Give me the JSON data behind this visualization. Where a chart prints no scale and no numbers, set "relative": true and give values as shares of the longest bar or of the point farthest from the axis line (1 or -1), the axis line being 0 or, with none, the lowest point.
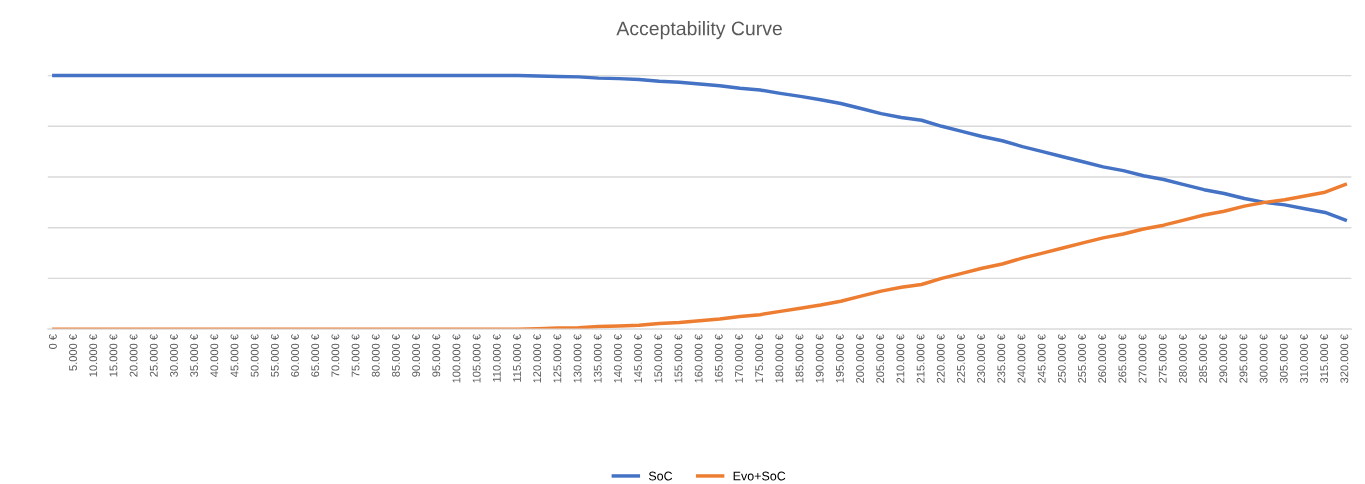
{
  "chart_data": {
    "type": "line",
    "title": "Acceptability Curve",
    "relative": true,
    "grid": "y",
    "legend": "bottom",
    "tick_labels": "x",
    "categories": [
      "0 €",
      "5.000 €",
      "10.000 €",
      "15.000 €",
      "20.000 €",
      "25.000 €",
      "30.000 €",
      "35.000 €",
      "40.000 €",
      "45.000 €",
      "50.000 €",
      "55.000 €",
      "60.000 €",
      "65.000 €",
      "70.000 €",
      "75.000 €",
      "80.000 €",
      "85.000 €",
      "90.000 €",
      "95.000 €",
      "100.000 €",
      "105.000 €",
      "110.000 €",
      "115.000 €",
      "120.000 €",
      "125.000 €",
      "130.000 €",
      "135.000 €",
      "140.000 €",
      "145.000 €",
      "150.000 €",
      "155.000 €",
      "160.000 €",
      "165.000 €",
      "170.000 €",
      "175.000 €",
      "180.000 €",
      "185.000 €",
      "190.000 €",
      "195.000 €",
      "200.000 €",
      "205.000 €",
      "210.000 €",
      "215.000 €",
      "220.000 €",
      "225.000 €",
      "230.000 €",
      "235.000 €",
      "240.000 €",
      "245.000 €",
      "250.000 €",
      "255.000 €",
      "260.000 €",
      "265.000 €",
      "270.000 €",
      "275.000 €",
      "280.000 €",
      "285.000 €",
      "290.000 €",
      "295.000 €",
      "300.000 €",
      "305.000 €",
      "310.000 €",
      "315.000 €",
      "320.000 €"
    ],
    "series": [
      {
        "name": "SoC",
        "color": "#4472c4",
        "values": [
          1,
          1,
          1,
          1,
          1,
          1,
          1,
          1,
          1,
          1,
          1,
          1,
          1,
          1,
          1,
          1,
          1,
          1,
          1,
          1,
          1,
          1,
          1,
          1,
          0.998,
          0.996,
          0.995,
          0.99,
          0.988,
          0.985,
          0.978,
          0.974,
          0.967,
          0.96,
          0.95,
          0.943,
          0.93,
          0.918,
          0.905,
          0.89,
          0.87,
          0.85,
          0.835,
          0.824,
          0.8,
          0.78,
          0.76,
          0.743,
          0.72,
          0.7,
          0.68,
          0.66,
          0.64,
          0.625,
          0.605,
          0.59,
          0.57,
          0.55,
          0.535,
          0.515,
          0.5,
          0.49,
          0.475,
          0.46,
          0.43
        ]
      },
      {
        "name": "Evo+SoC",
        "color": "#ed7d31",
        "values": [
          0,
          0,
          0,
          0,
          0,
          0,
          0,
          0,
          0,
          0,
          0,
          0,
          0,
          0,
          0,
          0,
          0,
          0,
          0,
          0,
          0,
          0,
          0,
          0,
          0.002,
          0.004,
          0.005,
          0.01,
          0.012,
          0.015,
          0.022,
          0.026,
          0.033,
          0.04,
          0.05,
          0.057,
          0.07,
          0.082,
          0.095,
          0.11,
          0.13,
          0.15,
          0.165,
          0.176,
          0.2,
          0.22,
          0.24,
          0.257,
          0.28,
          0.3,
          0.32,
          0.34,
          0.36,
          0.375,
          0.395,
          0.41,
          0.43,
          0.45,
          0.465,
          0.485,
          0.5,
          0.51,
          0.525,
          0.54,
          0.57
        ]
      }
    ]
  }
}
